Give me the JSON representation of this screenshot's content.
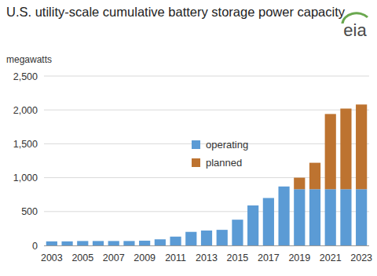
{
  "chart_data": {
    "type": "bar",
    "stacked": true,
    "title": "U.S. utility-scale cumulative battery storage power capacity",
    "subtitle": "megawatts",
    "source": "eia",
    "categories": [
      "2003",
      null,
      "2005",
      null,
      "2007",
      null,
      "2009",
      null,
      "2011",
      null,
      "2013",
      null,
      "2015",
      null,
      "2017",
      null,
      "2019",
      null,
      "2021",
      null,
      "2023"
    ],
    "series": [
      {
        "name": "operating",
        "color": "#5b9bd5",
        "values": [
          60,
          60,
          65,
          65,
          65,
          65,
          70,
          90,
          130,
          200,
          220,
          230,
          380,
          590,
          700,
          870,
          830,
          830,
          830,
          830,
          830
        ]
      },
      {
        "name": "planned",
        "color": "#bd7330",
        "values": [
          0,
          0,
          0,
          0,
          0,
          0,
          0,
          0,
          0,
          0,
          0,
          0,
          0,
          0,
          0,
          0,
          170,
          390,
          1110,
          1190,
          1250
        ]
      }
    ],
    "ylim": [
      0,
      2500
    ],
    "yticks": [
      0,
      500,
      {
        "value": 1000,
        "label": "1,000"
      },
      {
        "value": 1500,
        "label": "1,500"
      },
      {
        "value": 2000,
        "label": "2,000"
      },
      {
        "value": 2500,
        "label": "2,500"
      }
    ],
    "grid": true,
    "legend": "inside"
  }
}
